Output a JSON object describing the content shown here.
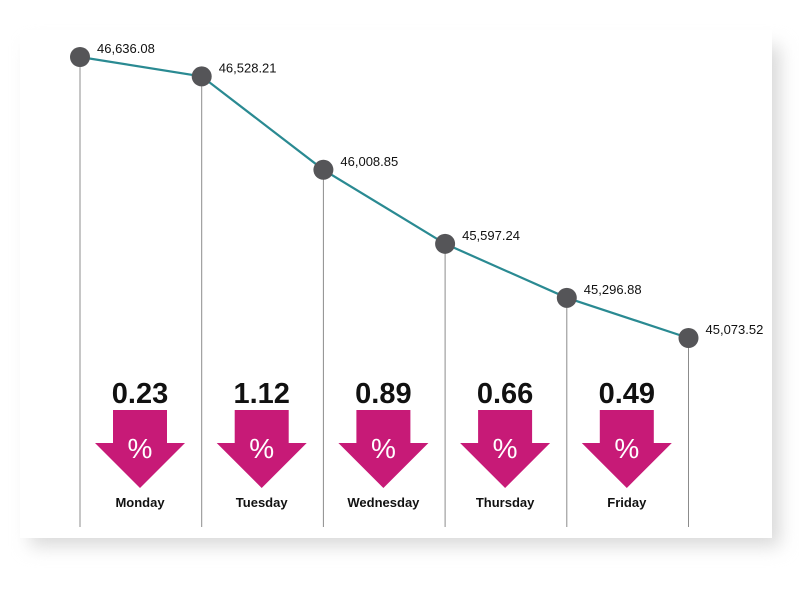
{
  "chart_data": {
    "type": "line",
    "categories": [
      "Monday",
      "Tuesday",
      "Wednesday",
      "Thursday",
      "Friday",
      ""
    ],
    "values": [
      46636.08,
      46528.21,
      46008.85,
      45597.24,
      45296.88,
      45073.52
    ],
    "value_labels": [
      "46,636.08",
      "46,528.21",
      "46,008.85",
      "45,597.24",
      "45,296.88",
      "45,073.52"
    ],
    "percent_changes": [
      "0.23",
      "1.12",
      "0.89",
      "0.66",
      "0.49"
    ],
    "percent_sign": "%",
    "direction": "down",
    "title": "",
    "xlabel": "",
    "ylabel": "",
    "grid": false,
    "legend": "none",
    "colors": {
      "line": "#2a8a92",
      "point": "#555558",
      "arrow": "#c71a77",
      "drop_line": "#8c8c8c"
    }
  }
}
